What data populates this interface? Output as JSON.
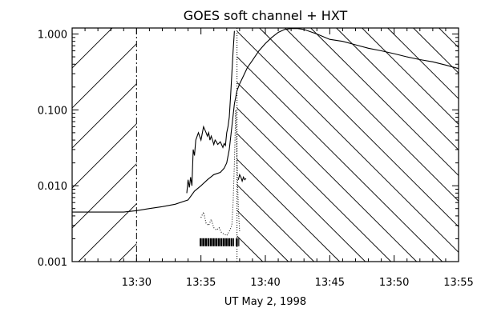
{
  "chart_data": {
    "type": "line",
    "title": "GOES soft channel + HXT",
    "xlabel": "UT May 2, 1998",
    "ylabel": "",
    "y_scale": "log",
    "xlim": [
      "13:25",
      "13:55"
    ],
    "ylim": [
      0.001,
      1.2
    ],
    "x_ticks": [
      "13:30",
      "13:35",
      "13:40",
      "13:45",
      "13:50",
      "13:55"
    ],
    "y_ticks": [
      {
        "value": 0.001,
        "label": "0.001"
      },
      {
        "value": 0.01,
        "label": "0.010"
      },
      {
        "value": 0.1,
        "label": "0.100"
      },
      {
        "value": 1.0,
        "label": "1.000"
      }
    ],
    "hatched_intervals": [
      [
        "13:25",
        "13:30"
      ],
      [
        "13:37.8",
        "13:55"
      ]
    ],
    "dash_dot_marker": "13:30",
    "dotted_marker": "13:37.8",
    "bar_interval": [
      "13:34.9",
      "13:38.1"
    ],
    "bar_level": 0.0018,
    "series": [
      {
        "style": "solid",
        "x": [
          "13:25",
          "13:27",
          "13:28",
          "13:29",
          "13:30",
          "13:31",
          "13:32",
          "13:33",
          "13:34",
          "13:34.5",
          "13:35",
          "13:35.5",
          "13:36",
          "13:36.5",
          "13:36.8",
          "13:37",
          "13:37.2",
          "13:37.4",
          "13:37.6",
          "13:37.8",
          "13:38",
          "13:38.3",
          "13:38.6",
          "13:39",
          "13:39.5",
          "13:40",
          "13:40.5",
          "13:41",
          "13:41.5",
          "13:42",
          "13:42.5",
          "13:43",
          "13:44",
          "13:45",
          "13:46",
          "13:47",
          "13:48",
          "13:49",
          "13:50",
          "13:51",
          "13:52",
          "13:53",
          "13:54",
          "13:55"
        ],
        "y": [
          0.0045,
          0.0045,
          0.0045,
          0.0045,
          0.0047,
          0.005,
          0.0053,
          0.0057,
          0.0065,
          0.0085,
          0.01,
          0.012,
          0.014,
          0.015,
          0.017,
          0.02,
          0.03,
          0.06,
          0.12,
          0.18,
          0.22,
          0.28,
          0.36,
          0.45,
          0.6,
          0.75,
          0.9,
          1.05,
          1.15,
          1.18,
          1.18,
          1.15,
          1.0,
          0.85,
          0.8,
          0.72,
          0.65,
          0.6,
          0.55,
          0.5,
          0.46,
          0.43,
          0.39,
          0.35
        ]
      },
      {
        "style": "solid",
        "x": [
          "13:33.9",
          "13:34",
          "13:34.1",
          "13:34.2",
          "13:34.3",
          "13:34.4",
          "13:34.5",
          "13:34.6",
          "13:34.8",
          "13:35",
          "13:35.2",
          "13:35.4",
          "13:35.5",
          "13:35.6",
          "13:35.7",
          "13:35.8",
          "13:35.9",
          "13:36",
          "13:36.1",
          "13:36.2",
          "13:36.3",
          "13:36.5",
          "13:36.7",
          "13:36.8",
          "13:36.9",
          "13:37",
          "13:37.1",
          "13:37.2",
          "13:37.3",
          "13:37.4",
          "13:37.5",
          "13:37.6"
        ],
        "y": [
          0.008,
          0.012,
          0.0095,
          0.013,
          0.01,
          0.03,
          0.025,
          0.04,
          0.05,
          0.04,
          0.06,
          0.05,
          0.045,
          0.05,
          0.04,
          0.045,
          0.04,
          0.035,
          0.04,
          0.038,
          0.035,
          0.038,
          0.032,
          0.036,
          0.034,
          0.05,
          0.06,
          0.08,
          0.15,
          0.3,
          0.6,
          1.1
        ]
      },
      {
        "style": "solid",
        "x": [
          "13:37.9",
          "13:38",
          "13:38.1",
          "13:38.2",
          "13:38.3",
          "13:38.4",
          "13:38.5"
        ],
        "y": [
          0.012,
          0.014,
          0.013,
          0.0115,
          0.013,
          0.012,
          0.0125
        ]
      },
      {
        "style": "dotted",
        "x": [
          "13:35",
          "13:35.2",
          "13:35.4",
          "13:35.6",
          "13:35.8",
          "13:36",
          "13:36.2",
          "13:36.4",
          "13:36.6",
          "13:36.8",
          "13:37",
          "13:37.2",
          "13:37.4",
          "13:37.5",
          "13:37.6",
          "13:37.7",
          "13:37.8",
          "13:37.9",
          "13:38"
        ],
        "y": [
          0.0038,
          0.0045,
          0.0032,
          0.003,
          0.0036,
          0.0028,
          0.0026,
          0.0028,
          0.0024,
          0.0023,
          0.0022,
          0.0025,
          0.003,
          0.006,
          0.02,
          0.1,
          0.02,
          0.005,
          0.0025
        ]
      }
    ]
  }
}
